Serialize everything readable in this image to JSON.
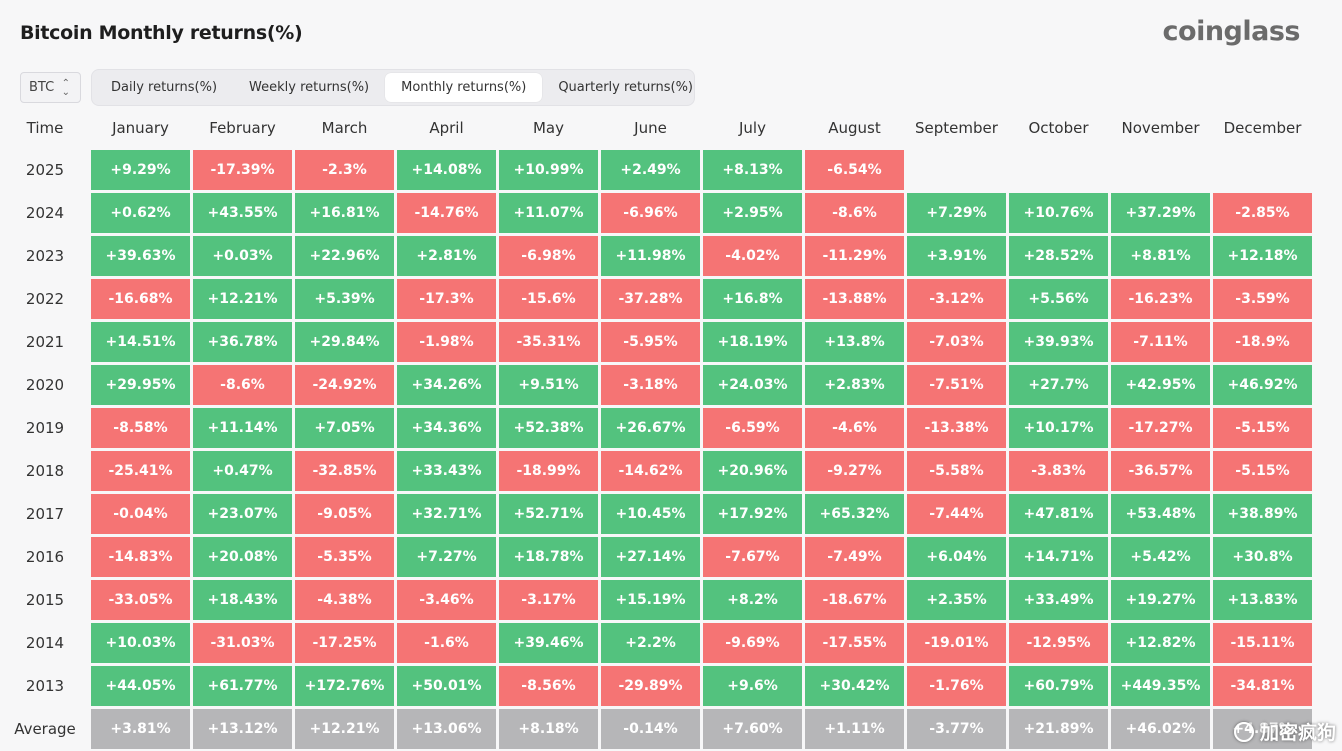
{
  "header": {
    "title": "Bitcoin Monthly returns(%)",
    "brand": "coinglass"
  },
  "controls": {
    "coin": "BTC",
    "tabs": [
      {
        "label": "Daily returns(%)",
        "active": false
      },
      {
        "label": "Weekly returns(%)",
        "active": false
      },
      {
        "label": "Monthly returns(%)",
        "active": true
      },
      {
        "label": "Quarterly returns(%)",
        "active": false
      }
    ]
  },
  "watermark": "加密疯狗",
  "colors": {
    "positive": "#53c27e",
    "negative": "#f57474",
    "average": "#b6b6b8"
  },
  "chart_data": {
    "type": "heatmap",
    "title": "Bitcoin Monthly returns(%)",
    "row_header": "Time",
    "columns": [
      "January",
      "February",
      "March",
      "April",
      "May",
      "June",
      "July",
      "August",
      "September",
      "October",
      "November",
      "December"
    ],
    "rows": [
      {
        "label": "2025",
        "values": [
          "+9.29%",
          "-17.39%",
          "-2.3%",
          "+14.08%",
          "+10.99%",
          "+2.49%",
          "+8.13%",
          "-6.54%",
          null,
          null,
          null,
          null
        ]
      },
      {
        "label": "2024",
        "values": [
          "+0.62%",
          "+43.55%",
          "+16.81%",
          "-14.76%",
          "+11.07%",
          "-6.96%",
          "+2.95%",
          "-8.6%",
          "+7.29%",
          "+10.76%",
          "+37.29%",
          "-2.85%"
        ]
      },
      {
        "label": "2023",
        "values": [
          "+39.63%",
          "+0.03%",
          "+22.96%",
          "+2.81%",
          "-6.98%",
          "+11.98%",
          "-4.02%",
          "-11.29%",
          "+3.91%",
          "+28.52%",
          "+8.81%",
          "+12.18%"
        ]
      },
      {
        "label": "2022",
        "values": [
          "-16.68%",
          "+12.21%",
          "+5.39%",
          "-17.3%",
          "-15.6%",
          "-37.28%",
          "+16.8%",
          "-13.88%",
          "-3.12%",
          "+5.56%",
          "-16.23%",
          "-3.59%"
        ]
      },
      {
        "label": "2021",
        "values": [
          "+14.51%",
          "+36.78%",
          "+29.84%",
          "-1.98%",
          "-35.31%",
          "-5.95%",
          "+18.19%",
          "+13.8%",
          "-7.03%",
          "+39.93%",
          "-7.11%",
          "-18.9%"
        ]
      },
      {
        "label": "2020",
        "values": [
          "+29.95%",
          "-8.6%",
          "-24.92%",
          "+34.26%",
          "+9.51%",
          "-3.18%",
          "+24.03%",
          "+2.83%",
          "-7.51%",
          "+27.7%",
          "+42.95%",
          "+46.92%"
        ]
      },
      {
        "label": "2019",
        "values": [
          "-8.58%",
          "+11.14%",
          "+7.05%",
          "+34.36%",
          "+52.38%",
          "+26.67%",
          "-6.59%",
          "-4.6%",
          "-13.38%",
          "+10.17%",
          "-17.27%",
          "-5.15%"
        ]
      },
      {
        "label": "2018",
        "values": [
          "-25.41%",
          "+0.47%",
          "-32.85%",
          "+33.43%",
          "-18.99%",
          "-14.62%",
          "+20.96%",
          "-9.27%",
          "-5.58%",
          "-3.83%",
          "-36.57%",
          "-5.15%"
        ]
      },
      {
        "label": "2017",
        "values": [
          "-0.04%",
          "+23.07%",
          "-9.05%",
          "+32.71%",
          "+52.71%",
          "+10.45%",
          "+17.92%",
          "+65.32%",
          "-7.44%",
          "+47.81%",
          "+53.48%",
          "+38.89%"
        ]
      },
      {
        "label": "2016",
        "values": [
          "-14.83%",
          "+20.08%",
          "-5.35%",
          "+7.27%",
          "+18.78%",
          "+27.14%",
          "-7.67%",
          "-7.49%",
          "+6.04%",
          "+14.71%",
          "+5.42%",
          "+30.8%"
        ]
      },
      {
        "label": "2015",
        "values": [
          "-33.05%",
          "+18.43%",
          "-4.38%",
          "-3.46%",
          "-3.17%",
          "+15.19%",
          "+8.2%",
          "-18.67%",
          "+2.35%",
          "+33.49%",
          "+19.27%",
          "+13.83%"
        ]
      },
      {
        "label": "2014",
        "values": [
          "+10.03%",
          "-31.03%",
          "-17.25%",
          "-1.6%",
          "+39.46%",
          "+2.2%",
          "-9.69%",
          "-17.55%",
          "-19.01%",
          "-12.95%",
          "+12.82%",
          "-15.11%"
        ]
      },
      {
        "label": "2013",
        "values": [
          "+44.05%",
          "+61.77%",
          "+172.76%",
          "+50.01%",
          "-8.56%",
          "-29.89%",
          "+9.6%",
          "+30.42%",
          "-1.76%",
          "+60.79%",
          "+449.35%",
          "-34.81%"
        ]
      }
    ],
    "average": {
      "label": "Average",
      "values": [
        "+3.81%",
        "+13.12%",
        "+12.21%",
        "+13.06%",
        "+8.18%",
        "-0.14%",
        "+7.60%",
        "+1.11%",
        "-3.77%",
        "+21.89%",
        "+46.02%",
        "+4.87%"
      ]
    }
  }
}
